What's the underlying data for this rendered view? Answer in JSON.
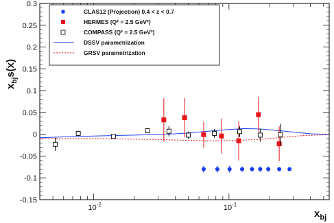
{
  "chart_data": {
    "type": "scatter",
    "xlabel": "x",
    "xlabel_sub": "bj",
    "ylabel": "x",
    "ylabel_sub": "bj",
    "ylabel_rest": "s(x)",
    "x_scale": "log",
    "xlim": [
      0.004,
      0.55
    ],
    "ylim": [
      -0.15,
      0.3
    ],
    "y_ticks": [
      "-0.15",
      "-0.1",
      "-0.05",
      "0",
      "0.05",
      "0.1",
      "0.15",
      "0.2",
      "0.25",
      "0.3"
    ],
    "x_ticks": [
      {
        "value": 0.01,
        "base": "10",
        "exp": "-2"
      },
      {
        "value": 0.1,
        "base": "10",
        "exp": "-1"
      }
    ],
    "grid": false,
    "legend_placement": "top-left",
    "series": [
      {
        "name": "CLAS12 (Projection) 0.4 < z < 0.7",
        "marker": "filled-circle",
        "color": "#1a3cff",
        "points": [
          {
            "x": 0.065,
            "y": -0.08,
            "err": 0.008
          },
          {
            "x": 0.082,
            "y": -0.08,
            "err": 0.008
          },
          {
            "x": 0.101,
            "y": -0.08,
            "err": 0.008
          },
          {
            "x": 0.125,
            "y": -0.08,
            "err": 0.006
          },
          {
            "x": 0.148,
            "y": -0.08,
            "err": 0.006
          },
          {
            "x": 0.17,
            "y": -0.08,
            "err": 0.006
          },
          {
            "x": 0.195,
            "y": -0.08,
            "err": 0.006
          },
          {
            "x": 0.235,
            "y": -0.08,
            "err": 0.005
          },
          {
            "x": 0.28,
            "y": -0.08,
            "err": 0.004
          }
        ]
      },
      {
        "name": "HERMES (Q² = 2.5 GeV²)",
        "marker": "filled-square",
        "color": "#e8161b",
        "points": [
          {
            "x": 0.033,
            "y": 0.033,
            "err": 0.05
          },
          {
            "x": 0.047,
            "y": 0.038,
            "err": 0.045
          },
          {
            "x": 0.065,
            "y": -0.001,
            "err": 0.03
          },
          {
            "x": 0.088,
            "y": -0.004,
            "err": 0.04
          },
          {
            "x": 0.118,
            "y": -0.015,
            "err": 0.045
          },
          {
            "x": 0.165,
            "y": 0.045,
            "err": 0.04
          },
          {
            "x": 0.235,
            "y": -0.022,
            "err": 0.04
          }
        ]
      },
      {
        "name": "COMPASS (Q² = 2.5 GeV²)",
        "marker": "open-square",
        "color": "#000000",
        "points": [
          {
            "x": 0.0052,
            "y": -0.023,
            "err": 0.015
          },
          {
            "x": 0.0077,
            "y": 0.002,
            "err": 0.006
          },
          {
            "x": 0.014,
            "y": -0.005,
            "err": 0.005
          },
          {
            "x": 0.025,
            "y": 0.008,
            "err": 0.005
          },
          {
            "x": 0.036,
            "y": 0.007,
            "err": 0.012
          },
          {
            "x": 0.05,
            "y": -0.002,
            "err": 0.008
          },
          {
            "x": 0.078,
            "y": 0.002,
            "err": 0.01
          },
          {
            "x": 0.12,
            "y": 0.006,
            "err": 0.012
          },
          {
            "x": 0.17,
            "y": -0.002,
            "err": 0.015
          },
          {
            "x": 0.24,
            "y": -0.001,
            "err": 0.025
          }
        ]
      },
      {
        "name": "DSSV parametrization",
        "type": "line",
        "style": "solid",
        "color": "#1f3ef0",
        "points": [
          {
            "x": 0.004,
            "y": -0.008
          },
          {
            "x": 0.006,
            "y": -0.006
          },
          {
            "x": 0.01,
            "y": -0.004
          },
          {
            "x": 0.02,
            "y": -0.002
          },
          {
            "x": 0.035,
            "y": 0.0
          },
          {
            "x": 0.05,
            "y": 0.003
          },
          {
            "x": 0.07,
            "y": 0.007
          },
          {
            "x": 0.1,
            "y": 0.011
          },
          {
            "x": 0.13,
            "y": 0.013
          },
          {
            "x": 0.17,
            "y": 0.012
          },
          {
            "x": 0.22,
            "y": 0.009
          },
          {
            "x": 0.3,
            "y": 0.005
          },
          {
            "x": 0.4,
            "y": 0.001
          },
          {
            "x": 0.55,
            "y": 0.0
          }
        ]
      },
      {
        "name": "GRSV parametrization",
        "type": "line",
        "style": "dashed",
        "color": "#e8161b",
        "points": [
          {
            "x": 0.004,
            "y": -0.01
          },
          {
            "x": 0.01,
            "y": -0.01
          },
          {
            "x": 0.03,
            "y": -0.012
          },
          {
            "x": 0.05,
            "y": -0.014
          },
          {
            "x": 0.08,
            "y": -0.015
          },
          {
            "x": 0.12,
            "y": -0.014
          },
          {
            "x": 0.18,
            "y": -0.011
          },
          {
            "x": 0.25,
            "y": -0.007
          },
          {
            "x": 0.35,
            "y": -0.003
          },
          {
            "x": 0.55,
            "y": -0.001
          }
        ]
      }
    ]
  }
}
